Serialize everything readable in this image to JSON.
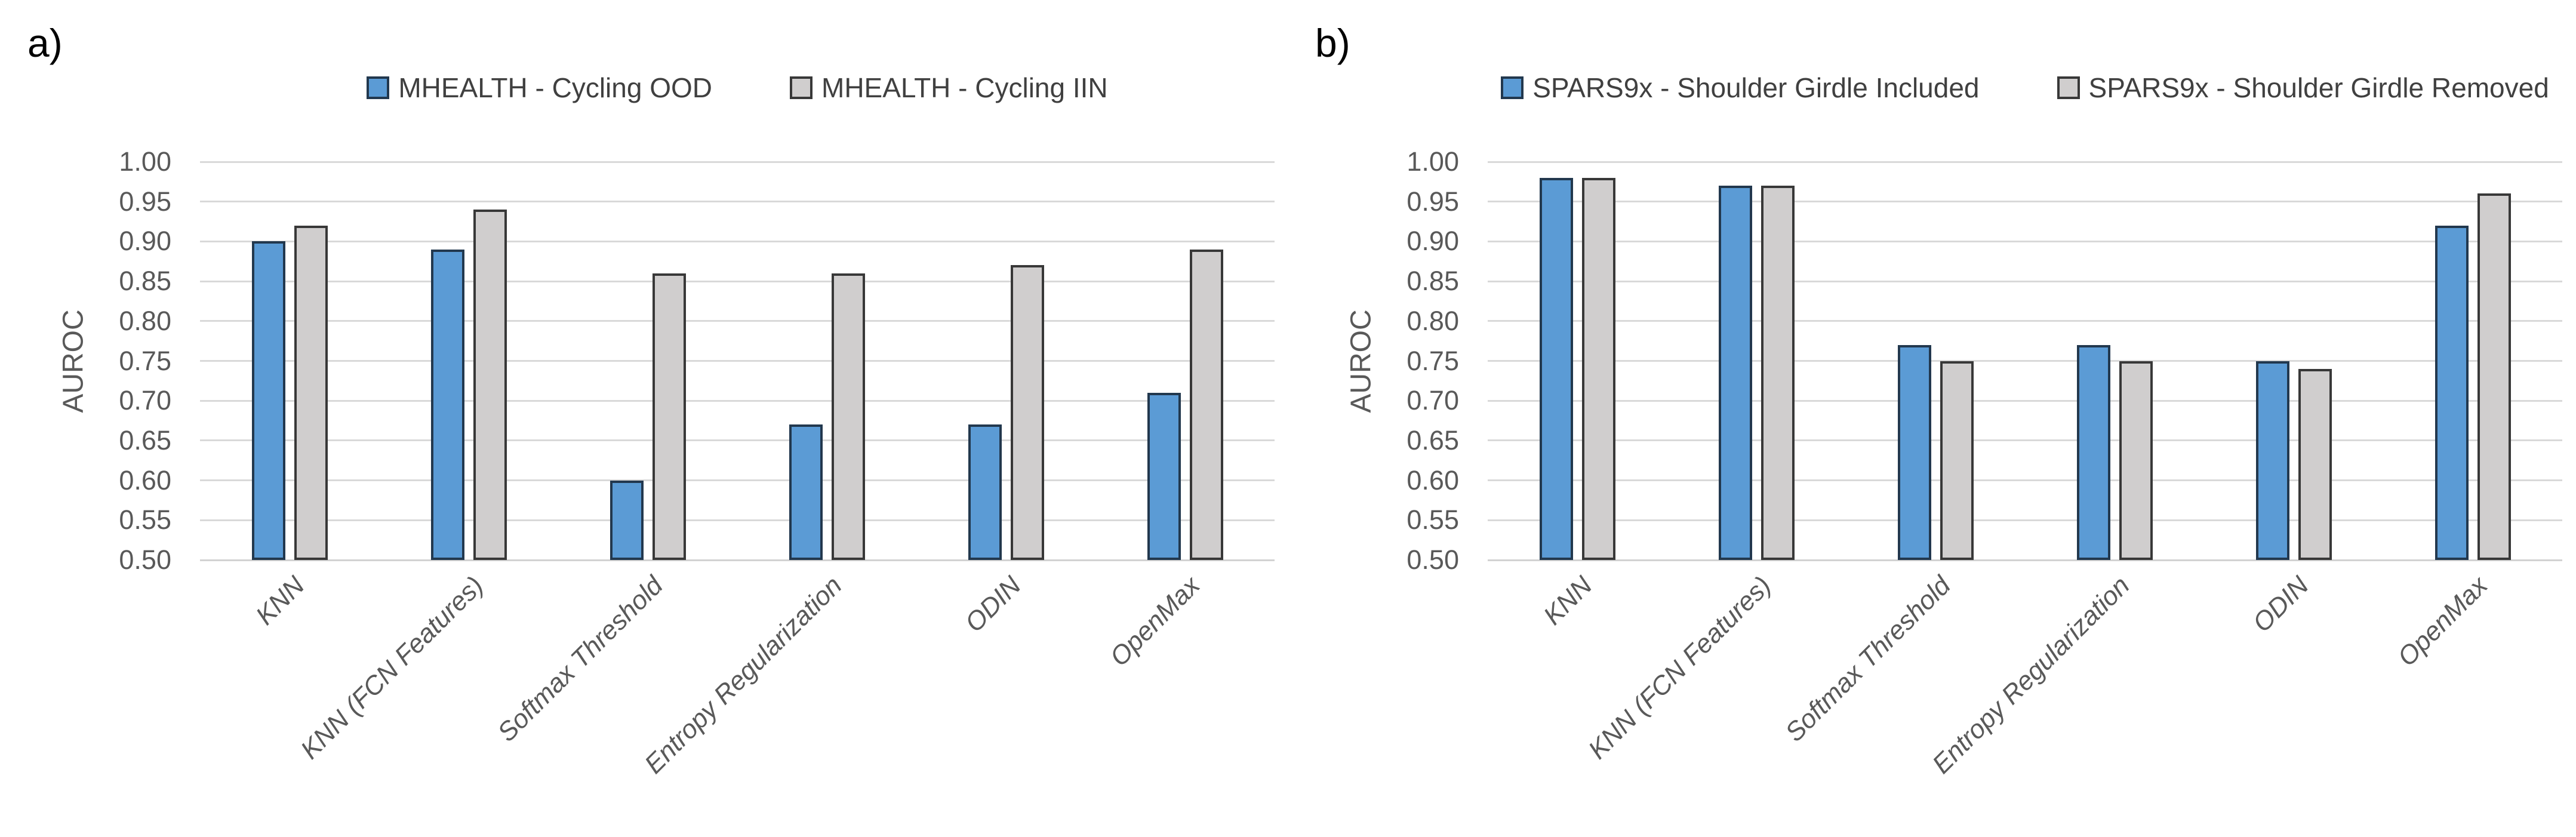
{
  "figure": {
    "background": "#ffffff",
    "gridline_color": "#D9D9D9",
    "tick_label_color": "#595959",
    "category_label_color": "#595959",
    "panel_label_color": "#000000"
  },
  "chart_data": [
    {
      "type": "bar",
      "panel_label": "a)",
      "title": "",
      "ylabel": "AUROC",
      "xlabel": "",
      "ylim": [
        0.5,
        1.0
      ],
      "ytick_step": 0.05,
      "yticks": [
        "1.00",
        "0.95",
        "0.90",
        "0.85",
        "0.80",
        "0.75",
        "0.70",
        "0.65",
        "0.60",
        "0.55",
        "0.50"
      ],
      "grid": true,
      "legend_position": "top",
      "categories": [
        "KNN",
        "KNN (FCN Features)",
        "Softmax Threshold",
        "Entropy Regularization",
        "ODIN",
        "OpenMax"
      ],
      "series": [
        {
          "name": "MHEALTH - Cycling OOD",
          "color": "#5B9BD5",
          "border_color": "#22384E",
          "values": [
            0.9,
            0.89,
            0.6,
            0.67,
            0.67,
            0.71
          ]
        },
        {
          "name": "MHEALTH - Cycling IIN",
          "color": "#D0CECE",
          "border_color": "#383838",
          "values": [
            0.92,
            0.94,
            0.86,
            0.86,
            0.87,
            0.89
          ]
        }
      ]
    },
    {
      "type": "bar",
      "panel_label": "b)",
      "title": "",
      "ylabel": "AUROC",
      "xlabel": "",
      "ylim": [
        0.5,
        1.0
      ],
      "ytick_step": 0.05,
      "yticks": [
        "1.00",
        "0.95",
        "0.90",
        "0.85",
        "0.80",
        "0.75",
        "0.70",
        "0.65",
        "0.60",
        "0.55",
        "0.50"
      ],
      "grid": true,
      "legend_position": "top",
      "categories": [
        "KNN",
        "KNN (FCN Features)",
        "Softmax Threshold",
        "Entropy Regularization",
        "ODIN",
        "OpenMax"
      ],
      "series": [
        {
          "name": "SPARS9x - Shoulder Girdle Included",
          "color": "#5B9BD5",
          "border_color": "#22384E",
          "values": [
            0.98,
            0.97,
            0.77,
            0.77,
            0.75,
            0.92
          ]
        },
        {
          "name": "SPARS9x - Shoulder Girdle Removed",
          "color": "#D0CECE",
          "border_color": "#383838",
          "values": [
            0.98,
            0.97,
            0.75,
            0.75,
            0.74,
            0.96
          ]
        }
      ]
    }
  ]
}
